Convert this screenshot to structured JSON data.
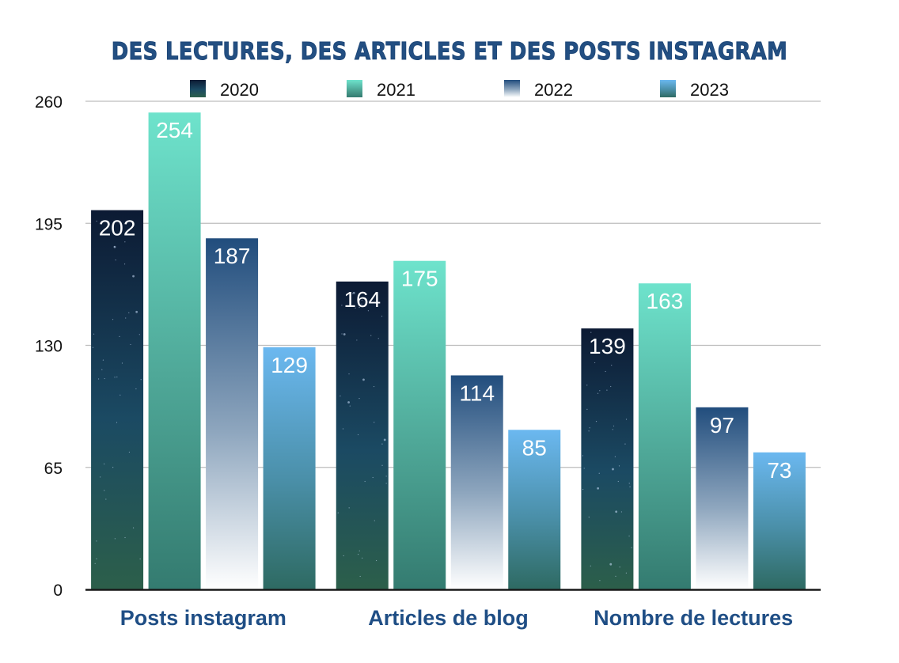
{
  "chart_data": {
    "type": "bar",
    "title": "DES LECTURES, DES ARTICLES ET DES POSTS INSTAGRAM",
    "xlabel": "",
    "ylabel": "",
    "categories": [
      "Posts instagram",
      "Articles de blog",
      "Nombre de lectures"
    ],
    "series": [
      {
        "name": "2020",
        "values": [
          202,
          164,
          139
        ],
        "colors": [
          "#0c1a33",
          "#1b4a63",
          "#2c5f4a"
        ]
      },
      {
        "name": "2021",
        "values": [
          254,
          175,
          163
        ],
        "colors": [
          "#6ee3cc",
          "#4fa898",
          "#347b70"
        ]
      },
      {
        "name": "2022",
        "values": [
          187,
          114,
          97
        ],
        "colors": [
          "#214d7d",
          "#8ea6be",
          "#ffffff"
        ]
      },
      {
        "name": "2023",
        "values": [
          129,
          85,
          73
        ],
        "colors": [
          "#6bb8f0",
          "#4a8fa8",
          "#2e6a62"
        ]
      }
    ],
    "ylim": [
      0,
      260
    ],
    "yticks": [
      0,
      65,
      130,
      195,
      260
    ],
    "grid": true,
    "legend": "top-center",
    "data_labels": true
  }
}
